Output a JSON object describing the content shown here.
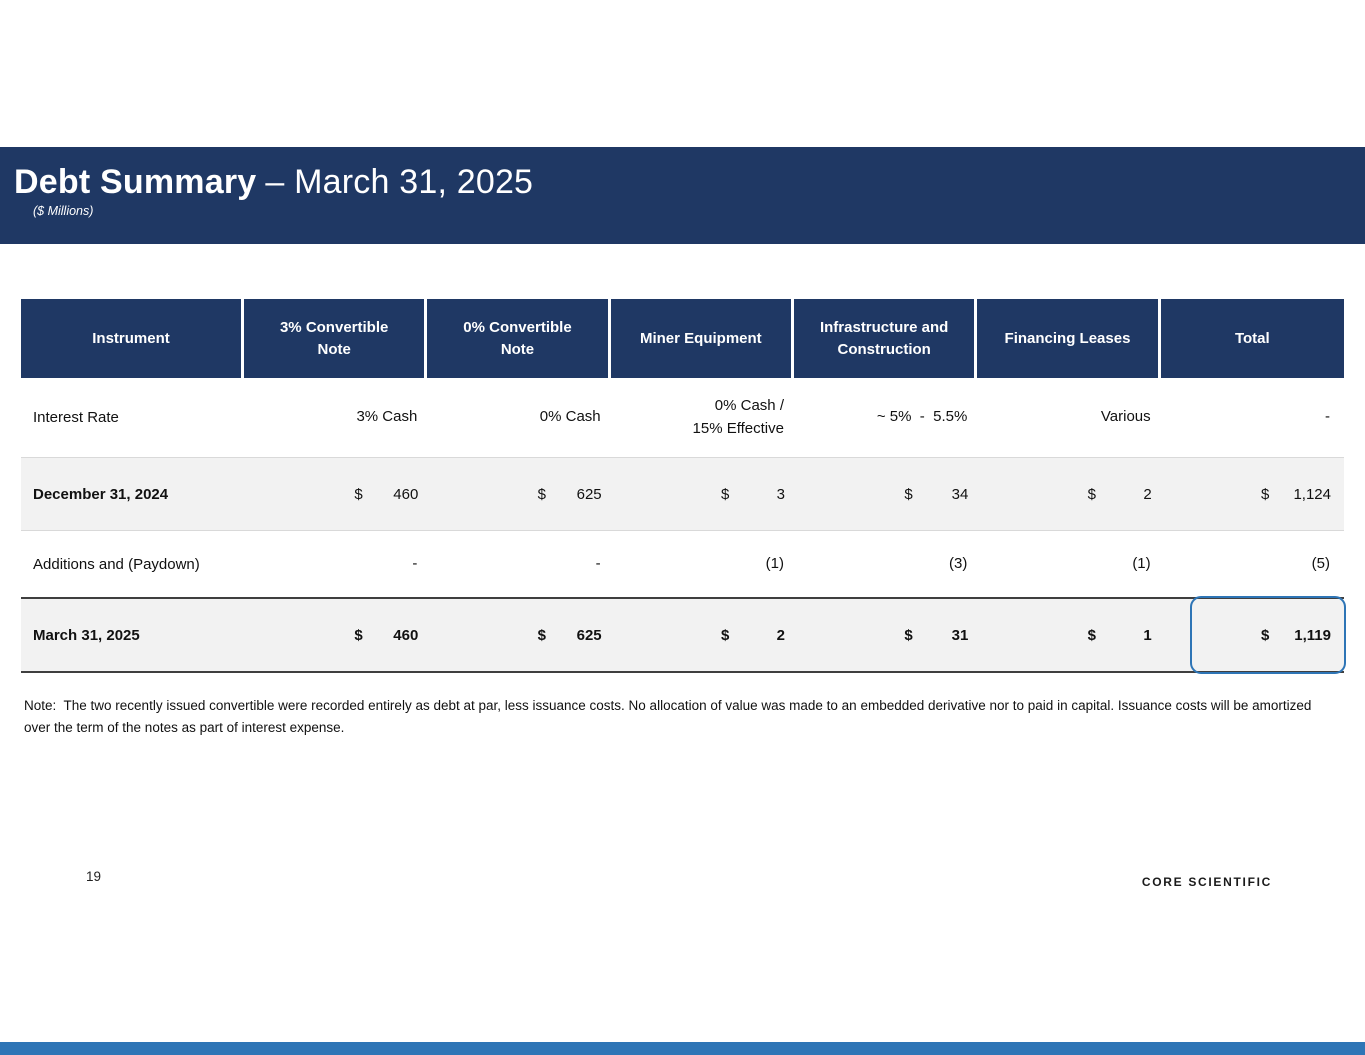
{
  "slide": {
    "title_bold": "Debt Summary",
    "title_light": "– March 31, 2025",
    "subtitle": "($ Millions)",
    "page_number": "19",
    "logo_text": "CORE SCIENTIFIC"
  },
  "colors": {
    "navy": "#1f3864",
    "shaded_row_gray": "#f2f2f2",
    "highlight_blue": "#2e75b6",
    "bottom_bar_blue": "#2e75b6"
  },
  "table": {
    "currency": "$",
    "columns": [
      "Instrument",
      "3% Convertible\nNote",
      "0% Convertible\nNote",
      "Miner Equipment",
      "Infrastructure and\nConstruction",
      "Financing Leases",
      "Total"
    ],
    "rows": [
      {
        "label": "Interest Rate",
        "label_bold": false,
        "values_bold": false,
        "shaded": false,
        "money": false,
        "highlight_total": false,
        "values": [
          "3% Cash",
          "0% Cash",
          "0% Cash /\n15% Effective",
          "~ 5%  -  5.5%",
          "Various",
          "-"
        ]
      },
      {
        "label": "December 31, 2024",
        "label_bold": true,
        "values_bold": false,
        "shaded": true,
        "money": true,
        "highlight_total": false,
        "values": [
          "460",
          "625",
          "3",
          "34",
          "2",
          "1,124"
        ]
      },
      {
        "label": "Additions and (Paydown)",
        "label_bold": false,
        "values_bold": false,
        "shaded": false,
        "money": false,
        "highlight_total": false,
        "values": [
          "-",
          "-",
          "(1)",
          "(3)",
          "(1)",
          "(5)"
        ]
      },
      {
        "label": "March 31, 2025",
        "label_bold": true,
        "values_bold": true,
        "shaded": true,
        "money": true,
        "highlight_total": true,
        "values": [
          "460",
          "625",
          "2",
          "31",
          "1",
          "1,119"
        ]
      }
    ]
  },
  "note": "Note:  The two recently issued convertible were recorded entirely as debt at par, less issuance costs. No allocation of value was made to an embedded derivative nor to paid in capital. Issuance costs will be amortized over the term of the notes as part of interest expense."
}
